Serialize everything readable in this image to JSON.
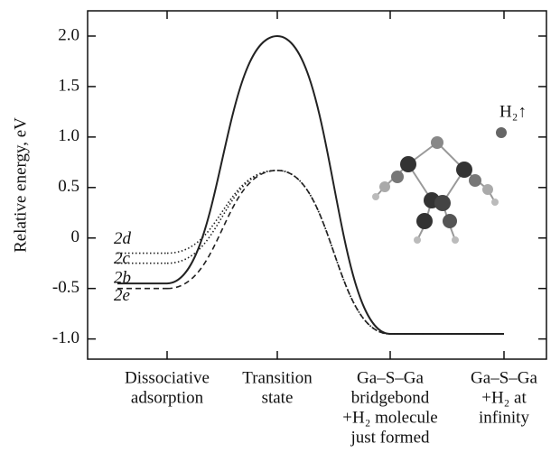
{
  "chart_data": {
    "type": "line",
    "y_label": "Relative energy, eV",
    "categories": [
      [
        "Dissociative",
        "adsorption"
      ],
      [
        "Transition",
        "state"
      ],
      [
        "Ga–S–Ga",
        "bridgebond",
        "+H₂ molecule",
        "just formed"
      ],
      [
        "Ga–S–Ga",
        "+H₂ at",
        "infinity"
      ]
    ],
    "series": [
      {
        "name": "2b",
        "color": "#222222",
        "style": "solid",
        "values": [
          -0.45,
          2.0,
          -0.95,
          -0.95
        ]
      },
      {
        "name": "2c",
        "color": "#222222",
        "style": "dotted",
        "values": [
          -0.25,
          0.67,
          -0.95,
          -0.95
        ]
      },
      {
        "name": "2d",
        "color": "#222222",
        "style": "dotted",
        "values": [
          -0.15,
          0.67,
          -0.95,
          -0.95
        ]
      },
      {
        "name": "2e",
        "color": "#222222",
        "style": "dashed",
        "values": [
          -0.5,
          0.67,
          -0.95,
          -0.95
        ]
      }
    ],
    "annotation": "H₂↑",
    "ylim": [
      -1.2,
      2.25
    ],
    "yticks": [
      {
        "value": -1,
        "label": "-1.0"
      },
      -0.5,
      0,
      0.5,
      {
        "value": 1,
        "label": "1.0"
      },
      1.5,
      {
        "value": 2,
        "label": "2.0"
      }
    ]
  }
}
